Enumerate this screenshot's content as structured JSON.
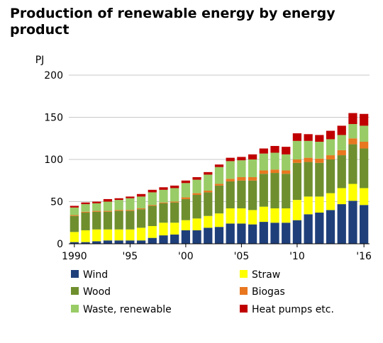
{
  "chart_data": {
    "type": "bar",
    "stacked": true,
    "title": "Production of renewable energy by energy product",
    "ylabel": "PJ",
    "xlabel": "",
    "ylim": [
      0,
      200
    ],
    "yticks": [
      0,
      50,
      100,
      150,
      200
    ],
    "grid": true,
    "legend_position": "bottom",
    "categories": [
      1990,
      1991,
      1992,
      1993,
      1994,
      1995,
      1996,
      1997,
      1998,
      1999,
      2000,
      2001,
      2002,
      2003,
      2004,
      2005,
      2006,
      2007,
      2008,
      2009,
      2010,
      2011,
      2012,
      2013,
      2014,
      2015,
      2016
    ],
    "xtick_labels": [
      {
        "category": 1990,
        "label": "1990"
      },
      {
        "category": 1995,
        "label": "'95"
      },
      {
        "category": 2000,
        "label": "'00"
      },
      {
        "category": 2005,
        "label": "'05"
      },
      {
        "category": 2010,
        "label": "'10"
      },
      {
        "category": 2016,
        "label": "'16"
      }
    ],
    "series": [
      {
        "name": "Wind",
        "color": "#1f3f7a",
        "values": [
          2,
          2,
          3,
          4,
          4,
          4,
          4,
          7,
          10,
          11,
          16,
          16,
          19,
          20,
          24,
          24,
          23,
          26,
          25,
          25,
          28,
          35,
          37,
          40,
          47,
          51,
          46
        ]
      },
      {
        "name": "Straw",
        "color": "#ffff00",
        "values": [
          12,
          14,
          14,
          13,
          13,
          13,
          15,
          14,
          15,
          14,
          12,
          14,
          14,
          16,
          18,
          18,
          17,
          18,
          17,
          17,
          24,
          21,
          19,
          20,
          19,
          20,
          20
        ]
      },
      {
        "name": "Wood",
        "color": "#6f8f2f",
        "values": [
          19,
          21,
          21,
          21,
          22,
          22,
          22,
          24,
          23,
          24,
          25,
          28,
          28,
          33,
          32,
          33,
          35,
          39,
          42,
          41,
          44,
          41,
          40,
          40,
          39,
          47,
          47
        ]
      },
      {
        "name": "Biogas",
        "color": "#e87720",
        "values": [
          1,
          1,
          1,
          1,
          1,
          1,
          1,
          1,
          1,
          1,
          2,
          2,
          2,
          2,
          3,
          4,
          4,
          4,
          4,
          4,
          4,
          5,
          5,
          5,
          6,
          7,
          8
        ]
      },
      {
        "name": "Waste, renewable",
        "color": "#99cc66",
        "values": [
          9,
          9,
          9,
          11,
          12,
          14,
          14,
          15,
          15,
          16,
          17,
          16,
          19,
          20,
          21,
          20,
          21,
          20,
          20,
          19,
          22,
          20,
          20,
          19,
          18,
          17,
          19
        ]
      },
      {
        "name": "Heat pumps etc.",
        "color": "#c00000",
        "values": [
          2,
          2,
          2,
          3,
          2,
          2,
          3,
          3,
          3,
          3,
          3,
          3,
          3,
          3,
          4,
          4,
          6,
          6,
          8,
          9,
          9,
          8,
          8,
          10,
          11,
          13,
          14
        ]
      }
    ]
  }
}
